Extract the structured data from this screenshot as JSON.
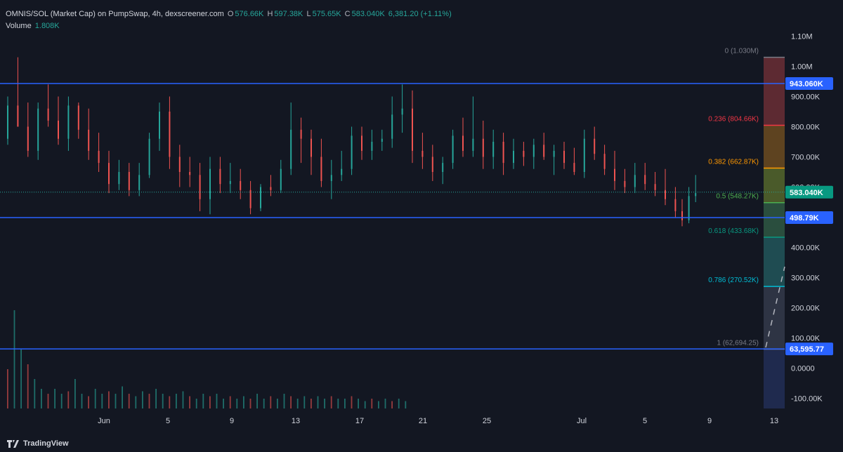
{
  "header": {
    "symbol": "OMNIS/SOL (Market Cap) on PumpSwap, 4h, dexscreener.com",
    "o_label": "O",
    "o_value": "576.66K",
    "h_label": "H",
    "h_value": "597.38K",
    "l_label": "L",
    "l_value": "575.65K",
    "c_label": "C",
    "c_value": "583.040K",
    "change": "6,381.20 (+1.11%)",
    "volume_label": "Volume",
    "volume_value": "1.808K"
  },
  "footer": {
    "brand": "TradingView",
    "logo_icon": "tradingview-logo-icon"
  },
  "colors": {
    "background": "#131722",
    "up": "#26a69a",
    "down": "#ef5350",
    "hline": "#2962ff",
    "grid": "#1e222d"
  },
  "chart_data": {
    "type": "candlestick",
    "title": "OMNIS/SOL (Market Cap) on PumpSwap, 4h, dexscreener.com",
    "y_ticks": [
      "1.10M",
      "1.00M",
      "900.00K",
      "800.00K",
      "700.00K",
      "600.00K",
      "500.00K",
      "400.00K",
      "300.00K",
      "200.00K",
      "100.00K",
      "0.0000",
      "-100.00K"
    ],
    "y_tick_values": [
      1100000,
      1000000,
      900000,
      800000,
      700000,
      600000,
      500000,
      400000,
      300000,
      200000,
      100000,
      0,
      -100000
    ],
    "x_ticks": [
      "Jun",
      "5",
      "9",
      "13",
      "17",
      "21",
      "25",
      "Jul",
      "5",
      "9",
      "13"
    ],
    "ylim": [
      -130000,
      1140000
    ],
    "grid": false,
    "price_tags": [
      {
        "label": "943.060K",
        "value": 943060,
        "type": "hline"
      },
      {
        "label": "583.040K",
        "value": 583040,
        "type": "last"
      },
      {
        "label": "498.79K",
        "value": 498790,
        "type": "hline"
      },
      {
        "label": "63,595.77",
        "value": 63595.77,
        "type": "hline"
      }
    ],
    "fibonacci": [
      {
        "label": "0 (1.030M)",
        "value": 1030000,
        "color": "#787b86"
      },
      {
        "label": "0.236 (804.66K)",
        "value": 804660,
        "color": "#f23645"
      },
      {
        "label": "0.382 (662.87K)",
        "value": 662870,
        "color": "#ff9800"
      },
      {
        "label": "0.5 (548.27K)",
        "value": 548270,
        "color": "#4caf50"
      },
      {
        "label": "0.618 (433.68K)",
        "value": 433680,
        "color": "#089981"
      },
      {
        "label": "0.786 (270.52K)",
        "value": 270520,
        "color": "#00bcd4"
      },
      {
        "label": "1 (62,694.25)",
        "value": 62694.25,
        "color": "#787b86"
      }
    ],
    "price_series": [
      {
        "i": 0,
        "o": 760,
        "h": 900,
        "l": 740,
        "c": 870
      },
      {
        "i": 6,
        "o": 870,
        "h": 1030,
        "l": 820,
        "c": 800
      },
      {
        "i": 12,
        "o": 800,
        "h": 880,
        "l": 700,
        "c": 720
      },
      {
        "i": 18,
        "o": 720,
        "h": 880,
        "l": 690,
        "c": 860
      },
      {
        "i": 24,
        "o": 860,
        "h": 940,
        "l": 800,
        "c": 820
      },
      {
        "i": 30,
        "o": 820,
        "h": 900,
        "l": 740,
        "c": 760
      },
      {
        "i": 36,
        "o": 760,
        "h": 900,
        "l": 720,
        "c": 870
      },
      {
        "i": 42,
        "o": 870,
        "h": 880,
        "l": 760,
        "c": 790
      },
      {
        "i": 48,
        "o": 790,
        "h": 860,
        "l": 690,
        "c": 720
      },
      {
        "i": 54,
        "o": 720,
        "h": 780,
        "l": 650,
        "c": 680
      },
      {
        "i": 60,
        "o": 680,
        "h": 720,
        "l": 580,
        "c": 610
      },
      {
        "i": 66,
        "o": 610,
        "h": 690,
        "l": 590,
        "c": 650
      },
      {
        "i": 72,
        "o": 650,
        "h": 680,
        "l": 570,
        "c": 590
      },
      {
        "i": 78,
        "o": 590,
        "h": 680,
        "l": 570,
        "c": 640
      },
      {
        "i": 84,
        "o": 640,
        "h": 780,
        "l": 630,
        "c": 760
      },
      {
        "i": 90,
        "o": 760,
        "h": 880,
        "l": 720,
        "c": 850
      },
      {
        "i": 96,
        "o": 850,
        "h": 900,
        "l": 660,
        "c": 700
      },
      {
        "i": 102,
        "o": 700,
        "h": 740,
        "l": 600,
        "c": 650
      },
      {
        "i": 108,
        "o": 650,
        "h": 700,
        "l": 600,
        "c": 640
      },
      {
        "i": 114,
        "o": 640,
        "h": 680,
        "l": 520,
        "c": 560
      },
      {
        "i": 120,
        "o": 560,
        "h": 700,
        "l": 510,
        "c": 660
      },
      {
        "i": 126,
        "o": 660,
        "h": 700,
        "l": 580,
        "c": 610
      },
      {
        "i": 132,
        "o": 610,
        "h": 680,
        "l": 580,
        "c": 620
      },
      {
        "i": 138,
        "o": 620,
        "h": 660,
        "l": 560,
        "c": 590
      },
      {
        "i": 144,
        "o": 590,
        "h": 620,
        "l": 510,
        "c": 530
      },
      {
        "i": 150,
        "o": 530,
        "h": 610,
        "l": 520,
        "c": 600
      },
      {
        "i": 156,
        "o": 600,
        "h": 640,
        "l": 570,
        "c": 590
      },
      {
        "i": 162,
        "o": 590,
        "h": 690,
        "l": 580,
        "c": 660
      },
      {
        "i": 168,
        "o": 660,
        "h": 880,
        "l": 640,
        "c": 790
      },
      {
        "i": 174,
        "o": 790,
        "h": 830,
        "l": 680,
        "c": 760
      },
      {
        "i": 180,
        "o": 760,
        "h": 790,
        "l": 640,
        "c": 700
      },
      {
        "i": 186,
        "o": 700,
        "h": 760,
        "l": 600,
        "c": 620
      },
      {
        "i": 192,
        "o": 620,
        "h": 690,
        "l": 560,
        "c": 640
      },
      {
        "i": 198,
        "o": 640,
        "h": 720,
        "l": 620,
        "c": 660
      },
      {
        "i": 204,
        "o": 660,
        "h": 800,
        "l": 640,
        "c": 770
      },
      {
        "i": 210,
        "o": 770,
        "h": 800,
        "l": 690,
        "c": 720
      },
      {
        "i": 216,
        "o": 720,
        "h": 790,
        "l": 690,
        "c": 750
      },
      {
        "i": 222,
        "o": 750,
        "h": 790,
        "l": 720,
        "c": 760
      },
      {
        "i": 228,
        "o": 760,
        "h": 900,
        "l": 730,
        "c": 840
      },
      {
        "i": 234,
        "o": 840,
        "h": 940,
        "l": 780,
        "c": 860
      },
      {
        "i": 240,
        "o": 860,
        "h": 920,
        "l": 680,
        "c": 720
      },
      {
        "i": 246,
        "o": 720,
        "h": 780,
        "l": 660,
        "c": 700
      },
      {
        "i": 252,
        "o": 700,
        "h": 740,
        "l": 620,
        "c": 650
      },
      {
        "i": 258,
        "o": 650,
        "h": 700,
        "l": 610,
        "c": 680
      },
      {
        "i": 264,
        "o": 680,
        "h": 790,
        "l": 660,
        "c": 770
      },
      {
        "i": 270,
        "o": 770,
        "h": 830,
        "l": 700,
        "c": 720
      },
      {
        "i": 276,
        "o": 720,
        "h": 900,
        "l": 700,
        "c": 760
      },
      {
        "i": 282,
        "o": 760,
        "h": 820,
        "l": 660,
        "c": 700
      },
      {
        "i": 288,
        "o": 700,
        "h": 790,
        "l": 660,
        "c": 750
      },
      {
        "i": 294,
        "o": 750,
        "h": 780,
        "l": 640,
        "c": 680
      },
      {
        "i": 300,
        "o": 680,
        "h": 760,
        "l": 660,
        "c": 720
      },
      {
        "i": 306,
        "o": 720,
        "h": 750,
        "l": 670,
        "c": 700
      },
      {
        "i": 312,
        "o": 700,
        "h": 760,
        "l": 660,
        "c": 740
      },
      {
        "i": 318,
        "o": 740,
        "h": 780,
        "l": 690,
        "c": 700
      },
      {
        "i": 324,
        "o": 700,
        "h": 740,
        "l": 640,
        "c": 720
      },
      {
        "i": 330,
        "o": 720,
        "h": 750,
        "l": 660,
        "c": 680
      },
      {
        "i": 336,
        "o": 680,
        "h": 730,
        "l": 640,
        "c": 650
      },
      {
        "i": 342,
        "o": 650,
        "h": 790,
        "l": 630,
        "c": 760
      },
      {
        "i": 348,
        "o": 760,
        "h": 800,
        "l": 690,
        "c": 710
      },
      {
        "i": 354,
        "o": 710,
        "h": 740,
        "l": 640,
        "c": 660
      },
      {
        "i": 360,
        "o": 660,
        "h": 720,
        "l": 590,
        "c": 620
      },
      {
        "i": 366,
        "o": 620,
        "h": 660,
        "l": 580,
        "c": 600
      },
      {
        "i": 372,
        "o": 600,
        "h": 680,
        "l": 580,
        "c": 640
      },
      {
        "i": 378,
        "o": 640,
        "h": 680,
        "l": 590,
        "c": 610
      },
      {
        "i": 384,
        "o": 610,
        "h": 650,
        "l": 570,
        "c": 590
      },
      {
        "i": 390,
        "o": 590,
        "h": 660,
        "l": 540,
        "c": 560
      },
      {
        "i": 396,
        "o": 560,
        "h": 600,
        "l": 500,
        "c": 520
      },
      {
        "i": 400,
        "o": 520,
        "h": 560,
        "l": 470,
        "c": 490
      },
      {
        "i": 404,
        "o": 490,
        "h": 600,
        "l": 480,
        "c": 570
      },
      {
        "i": 408,
        "o": 570,
        "h": 640,
        "l": 550,
        "c": 580
      }
    ],
    "volume_series": [
      {
        "i": 0,
        "v": 80
      },
      {
        "i": 4,
        "v": 200
      },
      {
        "i": 8,
        "v": 120
      },
      {
        "i": 12,
        "v": 90
      },
      {
        "i": 16,
        "v": 60
      },
      {
        "i": 20,
        "v": 40
      },
      {
        "i": 24,
        "v": 30
      },
      {
        "i": 28,
        "v": 40
      },
      {
        "i": 32,
        "v": 30
      },
      {
        "i": 36,
        "v": 35
      },
      {
        "i": 40,
        "v": 60
      },
      {
        "i": 44,
        "v": 30
      },
      {
        "i": 48,
        "v": 25
      },
      {
        "i": 52,
        "v": 40
      },
      {
        "i": 56,
        "v": 30
      },
      {
        "i": 60,
        "v": 35
      },
      {
        "i": 64,
        "v": 30
      },
      {
        "i": 68,
        "v": 45
      },
      {
        "i": 72,
        "v": 30
      },
      {
        "i": 76,
        "v": 25
      },
      {
        "i": 80,
        "v": 35
      },
      {
        "i": 84,
        "v": 30
      },
      {
        "i": 88,
        "v": 40
      },
      {
        "i": 92,
        "v": 30
      },
      {
        "i": 96,
        "v": 25
      },
      {
        "i": 100,
        "v": 30
      },
      {
        "i": 104,
        "v": 35
      },
      {
        "i": 108,
        "v": 25
      },
      {
        "i": 112,
        "v": 20
      },
      {
        "i": 116,
        "v": 30
      },
      {
        "i": 120,
        "v": 25
      },
      {
        "i": 124,
        "v": 30
      },
      {
        "i": 128,
        "v": 20
      },
      {
        "i": 132,
        "v": 25
      },
      {
        "i": 136,
        "v": 20
      },
      {
        "i": 140,
        "v": 25
      },
      {
        "i": 144,
        "v": 20
      },
      {
        "i": 148,
        "v": 30
      },
      {
        "i": 152,
        "v": 20
      },
      {
        "i": 156,
        "v": 25
      },
      {
        "i": 160,
        "v": 20
      },
      {
        "i": 164,
        "v": 30
      },
      {
        "i": 168,
        "v": 25
      },
      {
        "i": 172,
        "v": 20
      },
      {
        "i": 176,
        "v": 25
      },
      {
        "i": 180,
        "v": 20
      },
      {
        "i": 184,
        "v": 25
      },
      {
        "i": 188,
        "v": 20
      },
      {
        "i": 192,
        "v": 25
      },
      {
        "i": 196,
        "v": 20
      },
      {
        "i": 200,
        "v": 20
      },
      {
        "i": 204,
        "v": 25
      },
      {
        "i": 208,
        "v": 20
      },
      {
        "i": 212,
        "v": 15
      },
      {
        "i": 216,
        "v": 20
      },
      {
        "i": 220,
        "v": 15
      },
      {
        "i": 224,
        "v": 20
      },
      {
        "i": 228,
        "v": 15
      },
      {
        "i": 232,
        "v": 20
      },
      {
        "i": 236,
        "v": 15
      }
    ],
    "price_unit": "thousands"
  }
}
